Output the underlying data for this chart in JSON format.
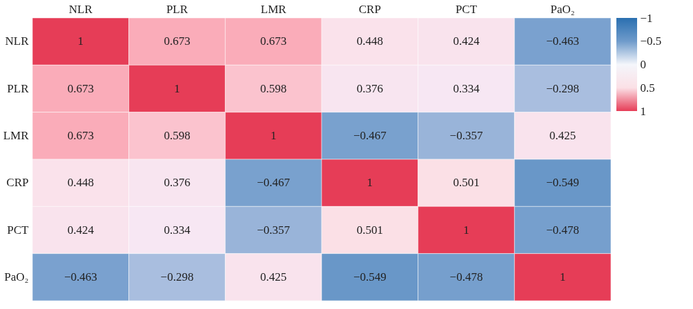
{
  "chart_data": {
    "type": "heatmap",
    "categories": [
      "NLR",
      "PLR",
      "LMR",
      "CRP",
      "PCT",
      "PaO₂"
    ],
    "y_categories": [
      "NLR",
      "PLR",
      "LMR",
      "CRP",
      "PCT",
      "PaO₂"
    ],
    "cells": [
      [
        1,
        0.673,
        0.673,
        0.448,
        0.424,
        -0.463
      ],
      [
        0.673,
        1,
        0.598,
        0.376,
        0.334,
        -0.298
      ],
      [
        0.673,
        0.598,
        1,
        -0.467,
        -0.357,
        0.425
      ],
      [
        0.448,
        0.376,
        -0.467,
        1,
        0.501,
        -0.549
      ],
      [
        0.424,
        0.334,
        -0.357,
        0.501,
        1,
        -0.478
      ],
      [
        -0.463,
        -0.298,
        0.425,
        -0.549,
        -0.478,
        1
      ]
    ],
    "cell_labels": [
      [
        "1",
        "0.673",
        "0.673",
        "0.448",
        "0.424",
        "−0.463"
      ],
      [
        "0.673",
        "1",
        "0.598",
        "0.376",
        "0.334",
        "−0.298"
      ],
      [
        "0.673",
        "0.598",
        "1",
        "−0.467",
        "−0.357",
        "0.425"
      ],
      [
        "0.448",
        "0.376",
        "−0.467",
        "1",
        "0.501",
        "−0.549"
      ],
      [
        "0.424",
        "0.334",
        "−0.357",
        "0.501",
        "1",
        "−0.478"
      ],
      [
        "−0.463",
        "−0.298",
        "0.425",
        "−0.549",
        "−0.478",
        "1"
      ]
    ],
    "clim": [
      -1,
      1
    ],
    "cticks": [
      {
        "value": -1,
        "label": "−1"
      },
      {
        "value": -0.5,
        "label": "−0.5"
      },
      0,
      0.5,
      1
    ],
    "colors": [
      "#2a6fb0",
      "#6f9bcb",
      "#f4f6fb",
      "#fbe0e6",
      "#e63d57"
    ]
  }
}
